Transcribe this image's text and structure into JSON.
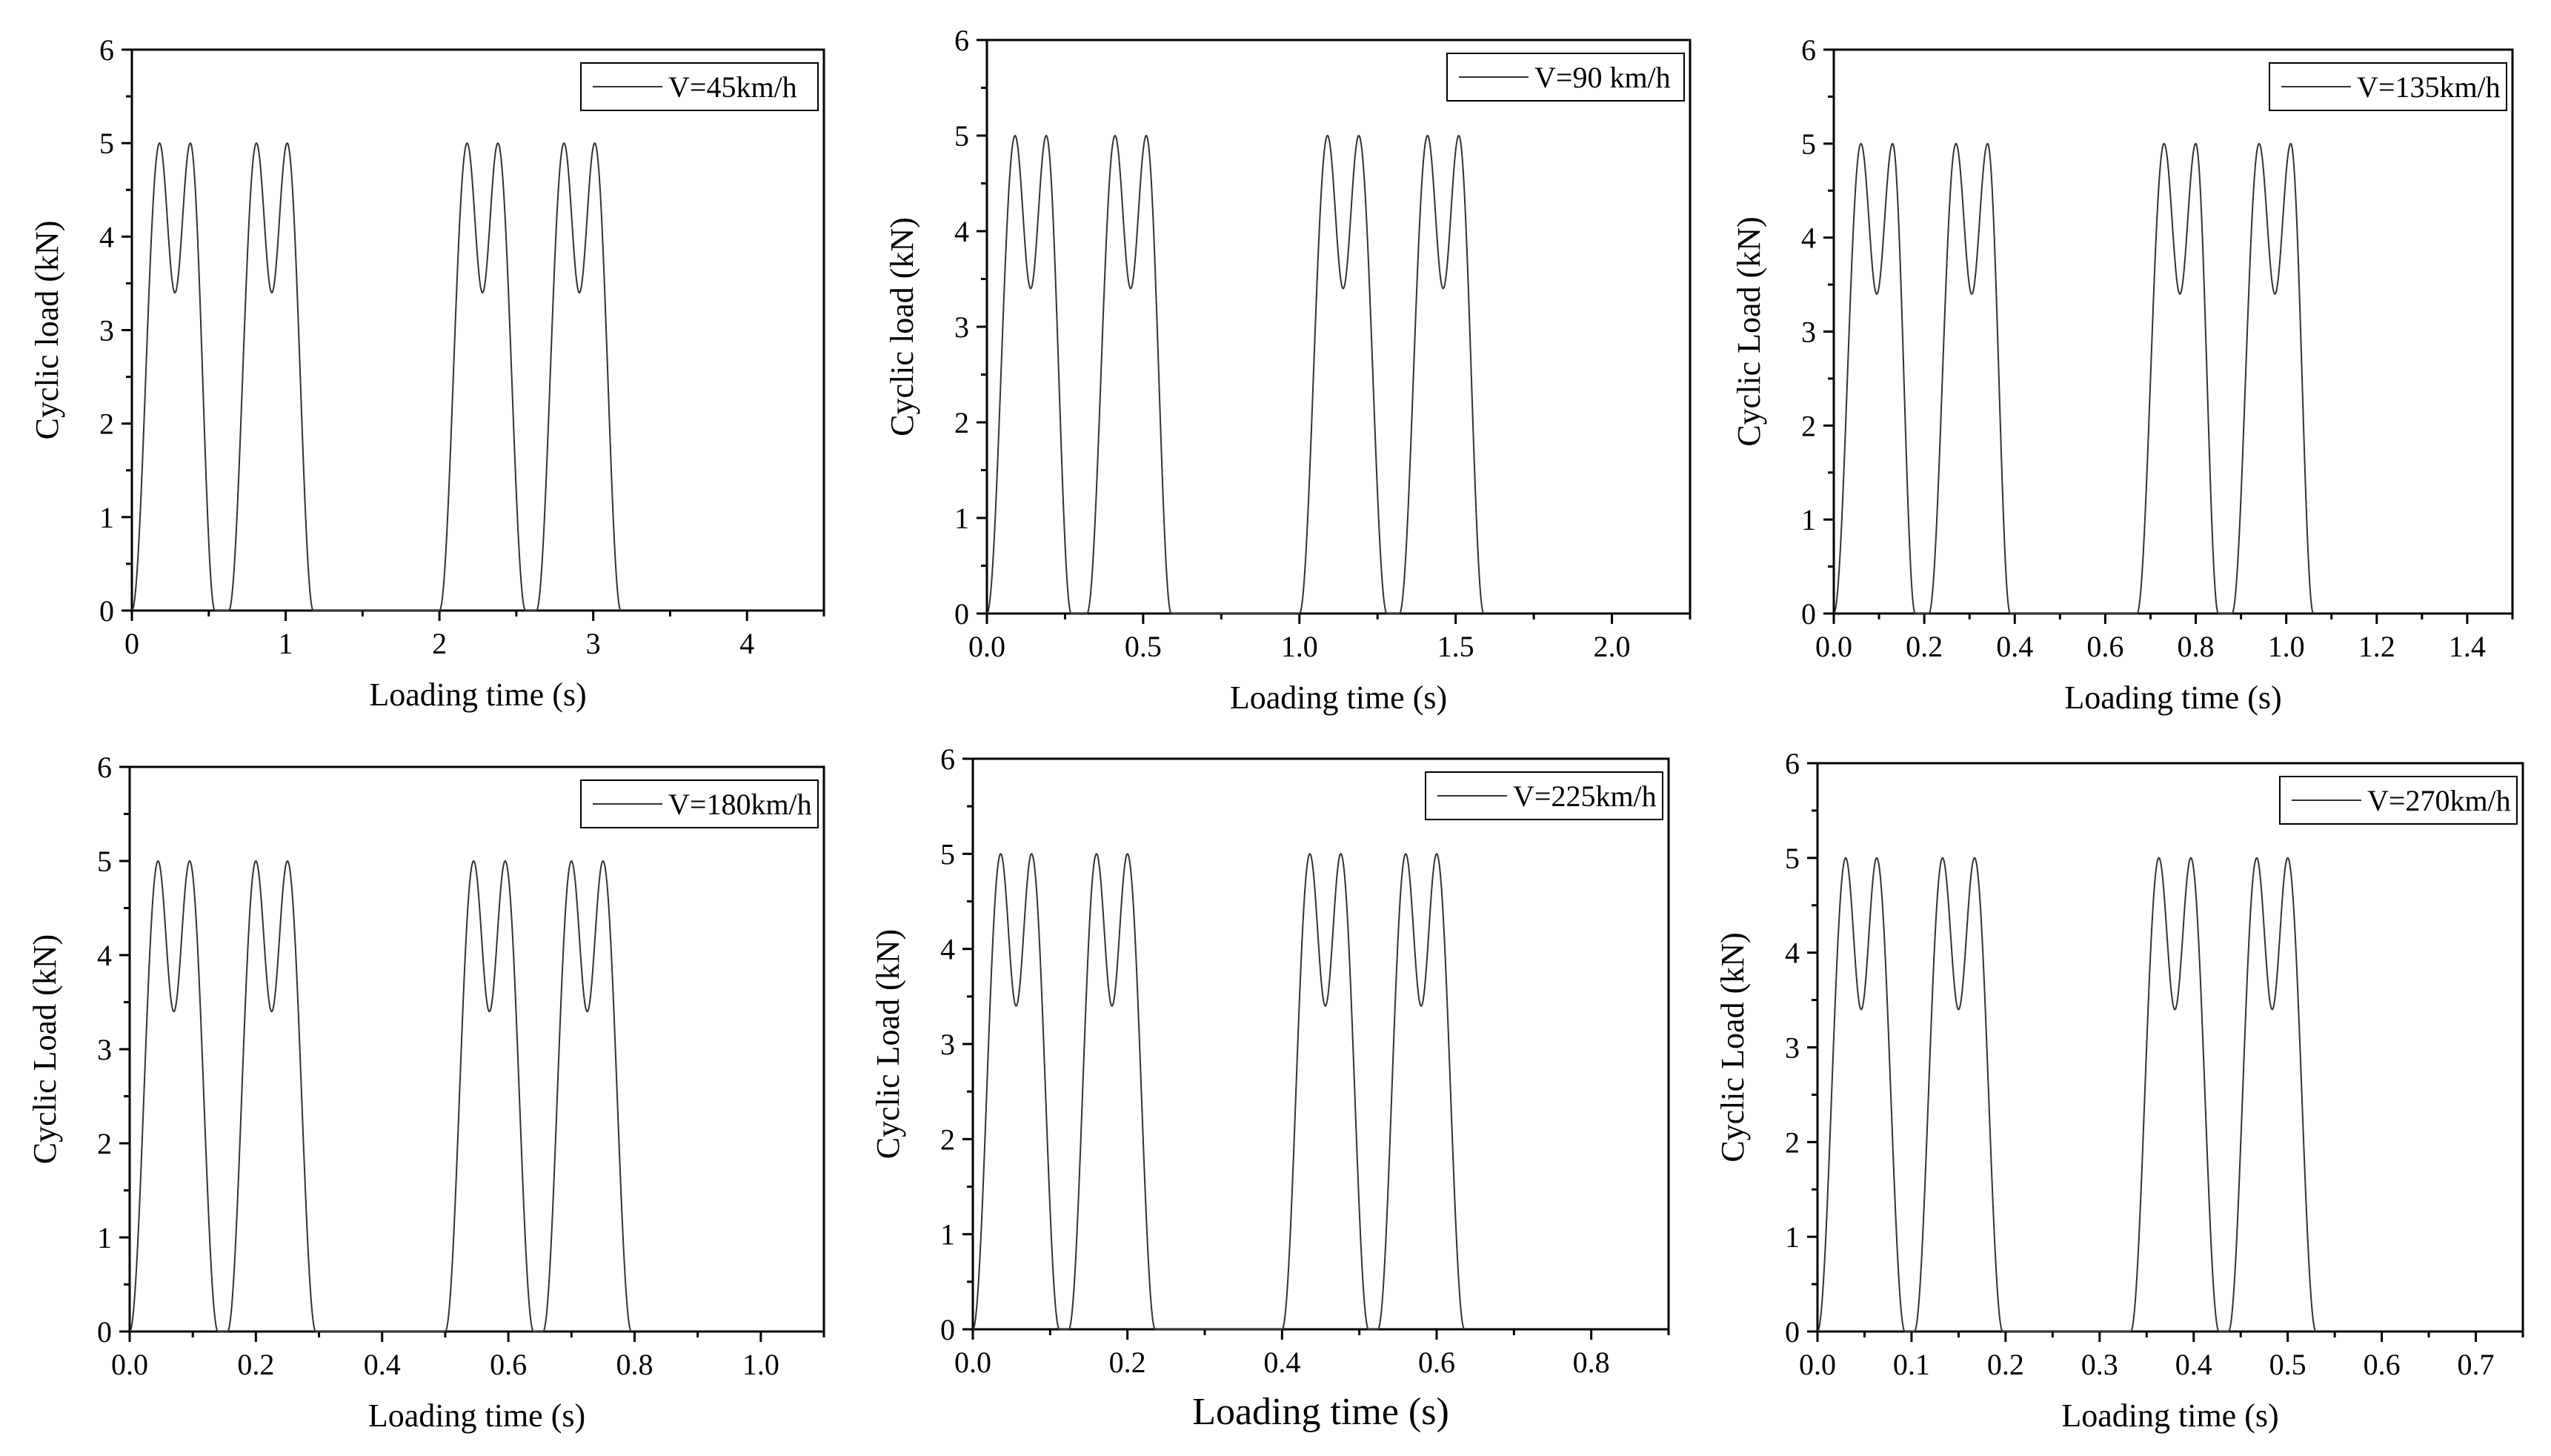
{
  "chart_data": [
    {
      "type": "line",
      "series": [
        {
          "name": "V=45km/h"
        }
      ],
      "speed_kmh": 45,
      "xlabel": "Loading time (s)",
      "ylabel": "Cyclic load (kN)",
      "xlim": [
        0,
        4.5
      ],
      "ylim": [
        0,
        6
      ],
      "xticks": [
        0,
        1,
        2,
        3,
        4
      ],
      "xtick_labels": [
        "0",
        "1",
        "2",
        "3",
        "4"
      ],
      "yticks": [
        0,
        1,
        2,
        3,
        4,
        5,
        6
      ],
      "ytick_labels": [
        "0",
        "1",
        "2",
        "3",
        "4",
        "5",
        "6"
      ],
      "peak_load": 5.0,
      "valley_load": 3.4,
      "peak_times": [
        0.18,
        0.38,
        0.81,
        1.01,
        2.18,
        2.38,
        2.81,
        3.01
      ],
      "nonzero_intervals": [
        [
          0.0,
          0.54
        ],
        [
          0.63,
          1.18
        ],
        [
          2.0,
          2.56
        ],
        [
          2.63,
          3.18
        ]
      ],
      "legend_position": "top-right",
      "grid": false
    },
    {
      "type": "line",
      "series": [
        {
          "name": "V=90 km/h"
        }
      ],
      "speed_kmh": 90,
      "xlabel": "Loading time (s)",
      "ylabel": "Cyclic load (kN)",
      "xlim": [
        0,
        2.25
      ],
      "ylim": [
        0,
        6
      ],
      "xticks": [
        0,
        0.5,
        1,
        1.5,
        2
      ],
      "xtick_labels": [
        "0.0",
        "0.5",
        "1.0",
        "1.5",
        "2.0"
      ],
      "yticks": [
        0,
        1,
        2,
        3,
        4,
        5,
        6
      ],
      "ytick_labels": [
        "0",
        "1",
        "2",
        "3",
        "4",
        "5",
        "6"
      ],
      "peak_load": 5.0,
      "valley_load": 3.4,
      "peak_times": [
        0.09,
        0.19,
        0.41,
        0.51,
        1.09,
        1.19,
        1.41,
        1.51
      ],
      "nonzero_intervals": [
        [
          0.0,
          0.27
        ],
        [
          0.32,
          0.59
        ],
        [
          1.0,
          1.28
        ],
        [
          1.32,
          1.59
        ]
      ],
      "legend_position": "top-right",
      "grid": false
    },
    {
      "type": "line",
      "series": [
        {
          "name": "V=135km/h"
        }
      ],
      "speed_kmh": 135,
      "xlabel": "Loading time (s)",
      "ylabel": "Cyclic Load (kN)",
      "xlim": [
        0,
        1.5
      ],
      "ylim": [
        0,
        6
      ],
      "xticks": [
        0,
        0.2,
        0.4,
        0.6,
        0.8,
        1.0,
        1.2,
        1.4
      ],
      "xtick_labels": [
        "0.0",
        "0.2",
        "0.4",
        "0.6",
        "0.8",
        "1.0",
        "1.2",
        "1.4"
      ],
      "yticks": [
        0,
        1,
        2,
        3,
        4,
        5,
        6
      ],
      "ytick_labels": [
        "0",
        "1",
        "2",
        "3",
        "4",
        "5",
        "6"
      ],
      "peak_load": 5.0,
      "valley_load": 3.4,
      "peak_times": [
        0.06,
        0.13,
        0.27,
        0.34,
        0.73,
        0.8,
        0.94,
        1.01
      ],
      "nonzero_intervals": [
        [
          0.0,
          0.18
        ],
        [
          0.21,
          0.39
        ],
        [
          0.67,
          0.85
        ],
        [
          0.88,
          1.06
        ]
      ],
      "legend_position": "top-right",
      "grid": false
    },
    {
      "type": "line",
      "series": [
        {
          "name": "V=180km/h"
        }
      ],
      "speed_kmh": 180,
      "xlabel": "Loading time (s)",
      "ylabel": "Cyclic Load (kN)",
      "xlim": [
        0,
        1.1
      ],
      "ylim": [
        0,
        6
      ],
      "xticks": [
        0,
        0.2,
        0.4,
        0.6,
        0.8,
        1.0
      ],
      "xtick_labels": [
        "0.0",
        "0.2",
        "0.4",
        "0.6",
        "0.8",
        "1.0"
      ],
      "yticks": [
        0,
        1,
        2,
        3,
        4,
        5,
        6
      ],
      "ytick_labels": [
        "0",
        "1",
        "2",
        "3",
        "4",
        "5",
        "6"
      ],
      "peak_load": 5.0,
      "valley_load": 3.4,
      "peak_times": [
        0.045,
        0.095,
        0.2,
        0.25,
        0.545,
        0.595,
        0.7,
        0.75
      ],
      "nonzero_intervals": [
        [
          0.0,
          0.14
        ],
        [
          0.155,
          0.295
        ],
        [
          0.5,
          0.64
        ],
        [
          0.655,
          0.795
        ]
      ],
      "legend_position": "top-right",
      "grid": false
    },
    {
      "type": "line",
      "series": [
        {
          "name": "V=225km/h"
        }
      ],
      "speed_kmh": 225,
      "xlabel": "Loading time (s)",
      "ylabel": "Cyclic Load (kN)",
      "xlim": [
        0,
        0.9
      ],
      "ylim": [
        0,
        6
      ],
      "xticks": [
        0,
        0.2,
        0.4,
        0.6,
        0.8
      ],
      "xtick_labels": [
        "0.0",
        "0.2",
        "0.4",
        "0.6",
        "0.8"
      ],
      "yticks": [
        0,
        1,
        2,
        3,
        4,
        5,
        6
      ],
      "ytick_labels": [
        "0",
        "1",
        "2",
        "3",
        "4",
        "5",
        "6"
      ],
      "peak_load": 5.0,
      "valley_load": 3.4,
      "peak_times": [
        0.036,
        0.076,
        0.16,
        0.2,
        0.436,
        0.476,
        0.56,
        0.6
      ],
      "nonzero_intervals": [
        [
          0.0,
          0.112
        ],
        [
          0.124,
          0.236
        ],
        [
          0.4,
          0.512
        ],
        [
          0.524,
          0.636
        ]
      ],
      "legend_position": "top-right",
      "grid": false
    },
    {
      "type": "line",
      "series": [
        {
          "name": "V=270km/h"
        }
      ],
      "speed_kmh": 270,
      "xlabel": "Loading time (s)",
      "ylabel": "Cyclic Load (kN)",
      "xlim": [
        0,
        0.75
      ],
      "ylim": [
        0,
        6
      ],
      "xticks": [
        0,
        0.1,
        0.2,
        0.3,
        0.4,
        0.5,
        0.6,
        0.7
      ],
      "xtick_labels": [
        "0.0",
        "0.1",
        "0.2",
        "0.3",
        "0.4",
        "0.5",
        "0.6",
        "0.7"
      ],
      "yticks": [
        0,
        1,
        2,
        3,
        4,
        5,
        6
      ],
      "ytick_labels": [
        "0",
        "1",
        "2",
        "3",
        "4",
        "5",
        "6"
      ],
      "peak_load": 5.0,
      "valley_load": 3.4,
      "peak_times": [
        0.03,
        0.063,
        0.133,
        0.167,
        0.363,
        0.397,
        0.467,
        0.5
      ],
      "nonzero_intervals": [
        [
          0.0,
          0.093
        ],
        [
          0.103,
          0.197
        ],
        [
          0.333,
          0.427
        ],
        [
          0.437,
          0.53
        ]
      ],
      "legend_position": "top-right",
      "grid": false
    }
  ]
}
